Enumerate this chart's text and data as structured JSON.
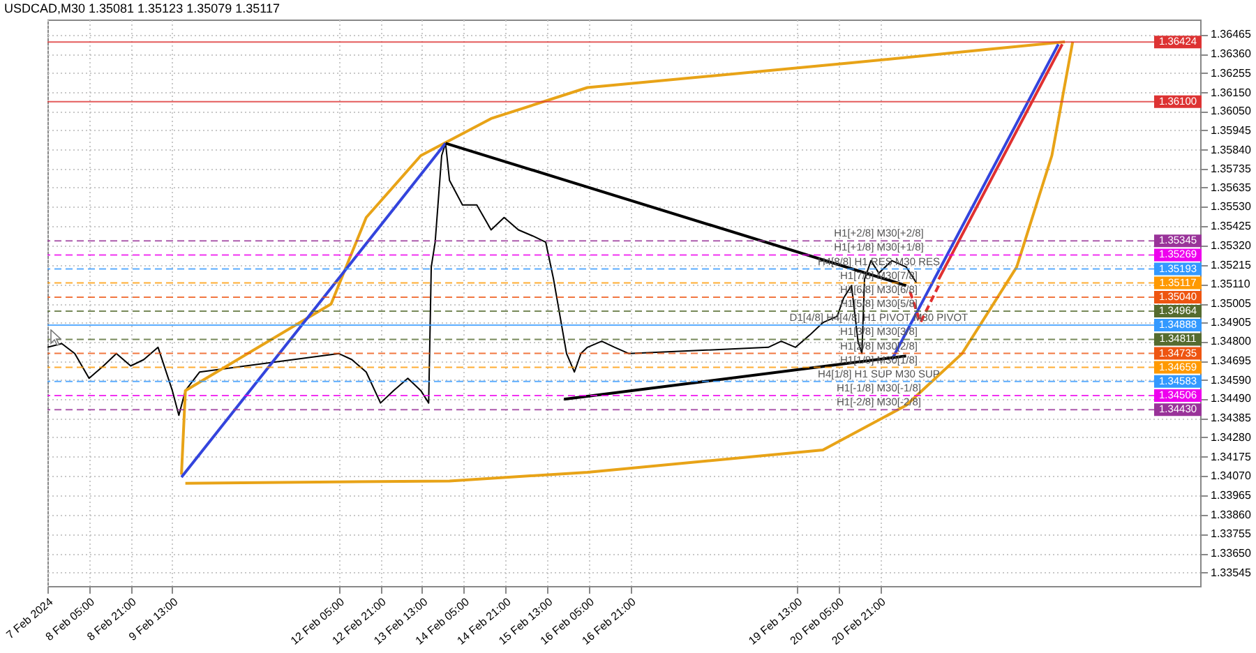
{
  "chart_data": {
    "type": "line",
    "title": "USDCAD,M30  1.35081 1.35123 1.35079 1.35117",
    "xlim": [
      "2024-02-07T13:00",
      "2024-02-26T00:00"
    ],
    "ylim": [
      1.33473,
      1.36546
    ],
    "xticks": [
      {
        "value": "2024-02-07T13:00",
        "label": "7 Feb 2024"
      },
      {
        "value": "2024-02-08T05:00",
        "label": "8 Feb 05:00"
      },
      {
        "value": "2024-02-08T21:00",
        "label": "8 Feb 21:00"
      },
      {
        "value": "2024-02-09T13:00",
        "label": "9 Feb 13:00"
      },
      {
        "value": "2024-02-12T05:00",
        "label": "12 Feb 05:00"
      },
      {
        "value": "2024-02-12T21:00",
        "label": "12 Feb 21:00"
      },
      {
        "value": "2024-02-13T13:00",
        "label": "13 Feb 13:00"
      },
      {
        "value": "2024-02-14T05:00",
        "label": "14 Feb 05:00"
      },
      {
        "value": "2024-02-14T21:00",
        "label": "14 Feb 21:00"
      },
      {
        "value": "2024-02-15T13:00",
        "label": "15 Feb 13:00"
      },
      {
        "value": "2024-02-16T05:00",
        "label": "16 Feb 05:00"
      },
      {
        "value": "2024-02-16T21:00",
        "label": "16 Feb 21:00"
      },
      {
        "value": "2024-02-19T13:00",
        "label": "19 Feb 13:00"
      },
      {
        "value": "2024-02-20T05:00",
        "label": "20 Feb 05:00"
      },
      {
        "value": "2024-02-20T21:00",
        "label": "20 Feb 21:00"
      }
    ],
    "yticks": [
      1.36465,
      {
        "value": 1.3636,
        "label": "1.36360"
      },
      1.36255,
      {
        "value": 1.3615,
        "label": "1.36150"
      },
      {
        "value": 1.3605,
        "label": "1.36050"
      },
      1.35945,
      {
        "value": 1.3584,
        "label": "1.35840"
      },
      1.35735,
      1.35635,
      {
        "value": 1.3553,
        "label": "1.35530"
      },
      1.35425,
      {
        "value": 1.3532,
        "label": "1.35320"
      },
      1.35215,
      {
        "value": 1.3511,
        "label": "1.35110"
      },
      1.35005,
      1.34905,
      {
        "value": 1.348,
        "label": "1.34800"
      },
      1.34695,
      {
        "value": 1.3459,
        "label": "1.34590"
      },
      {
        "value": 1.3449,
        "label": "1.34490"
      },
      1.34385,
      {
        "value": 1.3428,
        "label": "1.34280"
      },
      1.34175,
      {
        "value": 1.3407,
        "label": "1.34070"
      },
      1.33965,
      {
        "value": 1.3386,
        "label": "1.33860"
      },
      1.33755,
      {
        "value": 1.3365,
        "label": "1.33650"
      },
      1.33545
    ],
    "grid": true,
    "series": [
      {
        "color": "#000000",
        "x": [
          "2024-02-07T13:00",
          "2024-02-07T18:30",
          "2024-02-07T23:30",
          "2024-02-08T05:00",
          "2024-02-08T10:30",
          "2024-02-08T15:30",
          "2024-02-08T21:00",
          "2024-02-09T02:00",
          "2024-02-09T07:30",
          "2024-02-09T13:00",
          "2024-02-09T15:30",
          "2024-02-09T18:00",
          "2024-02-09T23:30",
          "2024-02-12T05:00",
          "2024-02-12T10:00",
          "2024-02-12T15:30",
          "2024-02-12T21:00",
          "2024-02-13T02:00",
          "2024-02-13T07:30",
          "2024-02-13T12:30",
          "2024-02-13T15:30",
          "2024-02-13T16:30",
          "2024-02-13T18:00",
          "2024-02-13T20:30",
          "2024-02-13T22:00",
          "2024-02-13T23:30",
          "2024-02-14T04:30",
          "2024-02-14T10:00",
          "2024-02-14T15:30",
          "2024-02-14T20:30",
          "2024-02-15T02:00",
          "2024-02-15T07:30",
          "2024-02-15T12:30",
          "2024-02-15T15:30",
          "2024-02-15T18:00",
          "2024-02-15T20:30",
          "2024-02-15T23:30",
          "2024-02-16T02:00",
          "2024-02-16T04:30",
          "2024-02-16T10:00",
          "2024-02-16T15:00",
          "2024-02-16T20:30",
          "2024-02-19T02:00",
          "2024-02-19T07:00",
          "2024-02-19T12:30",
          "2024-02-19T18:00",
          "2024-02-19T23:00",
          "2024-02-20T04:30",
          "2024-02-20T07:00",
          "2024-02-20T10:00",
          "2024-02-20T12:30",
          "2024-02-20T14:00",
          "2024-02-20T15:00",
          "2024-02-20T17:30",
          "2024-02-20T20:30",
          "2024-02-21T01:30",
          "2024-02-21T07:00",
          "2024-02-21T11:00"
        ],
        "values": [
          1.34768,
          1.34788,
          1.34734,
          1.346,
          1.34667,
          1.34734,
          1.34667,
          1.34701,
          1.34768,
          1.34533,
          1.34399,
          1.34533,
          1.34634,
          1.34734,
          1.34701,
          1.34634,
          1.34466,
          1.34533,
          1.346,
          1.34533,
          1.34466,
          1.35204,
          1.35338,
          1.35808,
          1.35875,
          1.35674,
          1.3554,
          1.3554,
          1.35405,
          1.35472,
          1.35405,
          1.35372,
          1.35338,
          1.35137,
          1.34936,
          1.34734,
          1.34634,
          1.34734,
          1.34768,
          1.34801,
          1.34768,
          1.34734,
          1.34768,
          1.34801,
          1.34768,
          1.34835,
          1.34902,
          1.34936,
          1.35036,
          1.35103,
          1.34801,
          1.34734,
          1.35137,
          1.35238,
          1.3517,
          1.35238,
          1.35204,
          1.35117
        ]
      },
      {
        "color": "#e8a317",
        "x": [
          "2024-02-09T16:30",
          "2024-02-09T18:00",
          "2024-02-12T02:00",
          "2024-02-12T15:30",
          "2024-02-13T12:30",
          "2024-02-14T15:30",
          "2024-02-16T04:30",
          "2024-02-20T10:00",
          "2024-02-22T15:00",
          "2024-02-23T20:00"
        ],
        "values": [
          1.34077,
          1.34533,
          1.35003,
          1.35472,
          1.35808,
          1.36009,
          1.36177,
          1.36311,
          1.36385,
          1.36425
        ]
      },
      {
        "color": "#e8a317",
        "x": [
          "2024-02-09T18:00",
          "2024-02-13T23:30",
          "2024-02-16T04:30",
          "2024-02-19T23:00",
          "2024-02-21T07:00",
          "2024-02-22T04:30",
          "2024-02-23T01:30",
          "2024-02-23T15:00",
          "2024-02-23T23:00"
        ],
        "values": [
          1.3403,
          1.34043,
          1.3409,
          1.34211,
          1.34453,
          1.34734,
          1.35204,
          1.35808,
          1.36425
        ]
      },
      {
        "color": "#3344dd",
        "x": [
          "2024-02-09T16:30",
          "2024-02-13T22:00"
        ],
        "values": [
          1.34063,
          1.35875
        ]
      },
      {
        "color": "#3344dd",
        "x": [
          "2024-02-21T01:30",
          "2024-02-23T17:30"
        ],
        "values": [
          1.34701,
          1.36412
        ]
      },
      {
        "color": "#000000",
        "x": [
          "2024-02-13T22:00",
          "2024-02-21T07:00"
        ],
        "values": [
          1.35875,
          1.35103
        ]
      },
      {
        "color": "#000000",
        "x": [
          "2024-02-15T19:30",
          "2024-02-21T07:00"
        ],
        "values": [
          1.34486,
          1.34721
        ]
      },
      {
        "color": "#e03030",
        "line_style": "dashed",
        "x": [
          "2024-02-21T08:30",
          "2024-02-21T12:30",
          "2024-02-21T19:30"
        ],
        "values": [
          1.3507,
          1.34902,
          1.35103
        ]
      },
      {
        "color": "#e03030",
        "x": [
          "2024-02-21T19:30",
          "2024-02-23T19:00"
        ],
        "values": [
          1.35137,
          1.36412
        ]
      }
    ],
    "ref_lines": [
      {
        "axis": "y",
        "value": 1.36424,
        "label": "1.36424",
        "color": "#dd3333",
        "line_style": "solid"
      },
      {
        "axis": "y",
        "value": 1.361,
        "label": "1.36100",
        "color": "#dd3333",
        "line_style": "solid"
      },
      {
        "axis": "y",
        "value": 1.35345,
        "label": "1.35345",
        "color": "#993399",
        "line_style": "dashed"
      },
      {
        "axis": "y",
        "value": 1.35269,
        "label": "1.35269",
        "color": "#ee00ee",
        "line_style": "dashed"
      },
      {
        "axis": "y",
        "value": 1.35193,
        "label": "1.35193",
        "color": "#3399ff",
        "line_style": "dashed"
      },
      {
        "axis": "y",
        "value": 1.35117,
        "label": "1.35117",
        "color": "#ff9900",
        "line_style": "dashed"
      },
      {
        "axis": "y",
        "value": 1.3504,
        "label": "1.35040",
        "color": "#ee5511",
        "line_style": "dashed"
      },
      {
        "axis": "y",
        "value": 1.34964,
        "label": "1.34964",
        "color": "#556b2f",
        "line_style": "dashed"
      },
      {
        "axis": "y",
        "value": 1.34888,
        "label": "1.34888",
        "color": "#3399ff",
        "line_style": "solid"
      },
      {
        "axis": "y",
        "value": 1.34811,
        "label": "1.34811",
        "color": "#556b2f",
        "line_style": "dashed"
      },
      {
        "axis": "y",
        "value": 1.34735,
        "label": "1.34735",
        "color": "#ee5511",
        "line_style": "dashed"
      },
      {
        "axis": "y",
        "value": 1.34659,
        "label": "1.34659",
        "color": "#ff9900",
        "line_style": "dashed"
      },
      {
        "axis": "y",
        "value": 1.34583,
        "label": "1.34583",
        "color": "#3399ff",
        "line_style": "dashed"
      },
      {
        "axis": "y",
        "value": 1.34506,
        "label": "1.34506",
        "color": "#ee00ee",
        "line_style": "dashed"
      },
      {
        "axis": "y",
        "value": 1.3443,
        "label": "1.34430",
        "color": "#993399",
        "line_style": "dashed"
      }
    ],
    "annotations": [
      {
        "text": "H1[+2/8] M30[+2/8]",
        "x": "2024-02-20T20:30",
        "y": 1.35345
      },
      {
        "text": "H1[+1/8] M30[+1/8]",
        "x": "2024-02-20T20:30",
        "y": 1.35269
      },
      {
        "text": "H4[8/8] H1 RES M30 RES",
        "x": "2024-02-20T20:30",
        "y": 1.35193
      },
      {
        "text": "H1[7/8] M30[7/8]",
        "x": "2024-02-20T20:30",
        "y": 1.35117
      },
      {
        "text": "H1[6/8] M30[6/8]",
        "x": "2024-02-20T20:30",
        "y": 1.3504
      },
      {
        "text": "H1[5/8] M30[5/8]",
        "x": "2024-02-20T20:30",
        "y": 1.34964
      },
      {
        "text": "D1[4/8] H4[4/8] H1 PIVOT M30 PIVOT",
        "x": "2024-02-20T20:30",
        "y": 1.34888
      },
      {
        "text": "H1[3/8] M30[3/8]",
        "x": "2024-02-20T20:30",
        "y": 1.34811
      },
      {
        "text": "H1[2/8] M30[2/8]",
        "x": "2024-02-20T20:30",
        "y": 1.34735
      },
      {
        "text": "H1[1/8] M30[1/8]",
        "x": "2024-02-20T20:30",
        "y": 1.34659
      },
      {
        "text": "H4[1/8] H1 SUP M30 SUP",
        "x": "2024-02-20T20:30",
        "y": 1.34583
      },
      {
        "text": "H1[-1/8] M30[-1/8]",
        "x": "2024-02-20T20:30",
        "y": 1.34506
      },
      {
        "text": "H1[-2/8] M30[-2/8]",
        "x": "2024-02-20T20:30",
        "y": 1.3443
      }
    ]
  }
}
